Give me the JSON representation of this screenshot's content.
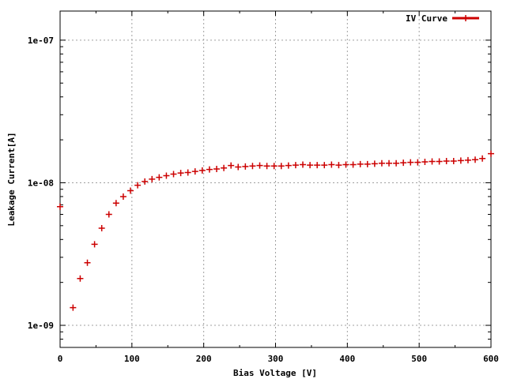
{
  "chart_data": {
    "type": "scatter",
    "xlabel": "Bias Voltage [V]",
    "ylabel": "Leakage Current[A]",
    "xlim": [
      0,
      600
    ],
    "ylim": [
      7e-10,
      1.6e-07
    ],
    "yscale": "log",
    "grid": true,
    "legend_position": "top-right",
    "x_ticks": [
      0,
      100,
      200,
      300,
      400,
      500,
      600
    ],
    "x_tick_labels": [
      "0",
      "100",
      "200",
      "300",
      "400",
      "500",
      "600"
    ],
    "y_ticks": [
      1e-09,
      1e-08,
      1e-07
    ],
    "y_tick_labels": [
      "1e-09",
      "1e-08",
      "1e-07"
    ],
    "series": [
      {
        "name": "IV Curve",
        "color": "#cc0000",
        "marker": "plus",
        "x": [
          0,
          18,
          28,
          38,
          48,
          58,
          68,
          78,
          88,
          98,
          108,
          118,
          128,
          138,
          148,
          158,
          168,
          178,
          188,
          198,
          208,
          218,
          228,
          238,
          248,
          258,
          268,
          278,
          288,
          298,
          308,
          318,
          328,
          338,
          348,
          358,
          368,
          378,
          388,
          398,
          408,
          418,
          428,
          438,
          448,
          458,
          468,
          478,
          488,
          498,
          508,
          518,
          528,
          538,
          548,
          558,
          568,
          578,
          588,
          600
        ],
        "y": [
          6.8e-09,
          1.33e-09,
          2.13e-09,
          2.75e-09,
          3.7e-09,
          4.8e-09,
          6e-09,
          7.2e-09,
          8e-09,
          8.8e-09,
          9.6e-09,
          1.02e-08,
          1.06e-08,
          1.09e-08,
          1.12e-08,
          1.15e-08,
          1.17e-08,
          1.18e-08,
          1.2e-08,
          1.22e-08,
          1.24e-08,
          1.25e-08,
          1.27e-08,
          1.32e-08,
          1.29e-08,
          1.3e-08,
          1.31e-08,
          1.32e-08,
          1.31e-08,
          1.31e-08,
          1.31e-08,
          1.32e-08,
          1.33e-08,
          1.34e-08,
          1.33e-08,
          1.33e-08,
          1.33e-08,
          1.34e-08,
          1.33e-08,
          1.34e-08,
          1.34e-08,
          1.35e-08,
          1.35e-08,
          1.36e-08,
          1.37e-08,
          1.37e-08,
          1.37e-08,
          1.38e-08,
          1.39e-08,
          1.39e-08,
          1.4e-08,
          1.41e-08,
          1.41e-08,
          1.42e-08,
          1.42e-08,
          1.43e-08,
          1.44e-08,
          1.45e-08,
          1.48e-08,
          1.6e-08
        ]
      }
    ]
  }
}
